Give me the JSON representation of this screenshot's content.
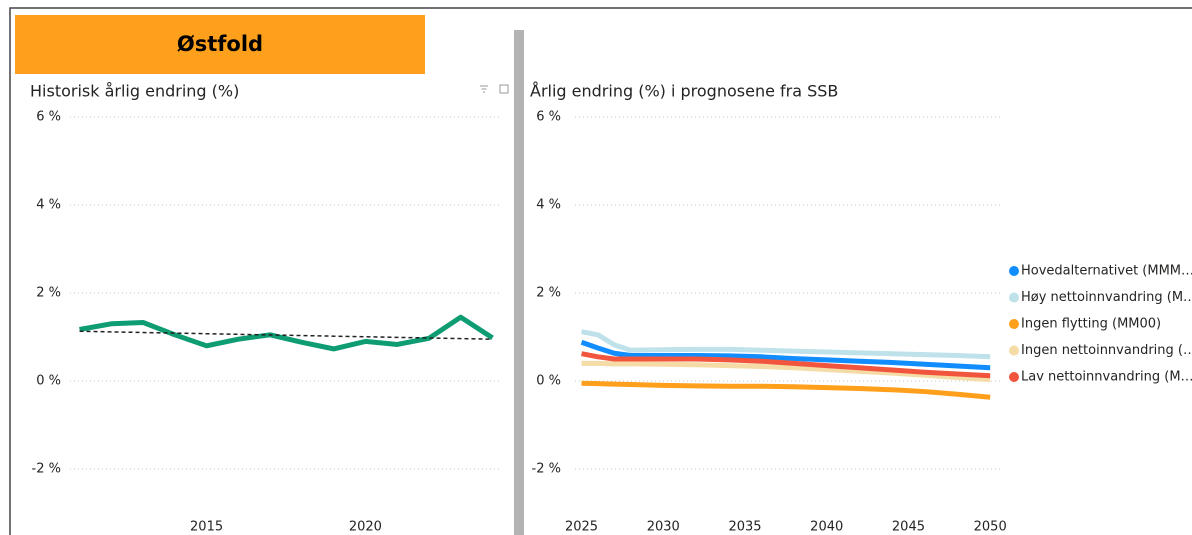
{
  "banner": "Østfold",
  "chart_data": [
    {
      "type": "line",
      "title": "Historisk årlig endring (%)",
      "x": [
        2011,
        2012,
        2013,
        2014,
        2015,
        2016,
        2017,
        2018,
        2019,
        2020,
        2021,
        2022,
        2023,
        2024
      ],
      "series": [
        {
          "color": "#0e9c73",
          "values": [
            1.17,
            1.3,
            1.33,
            1.05,
            0.8,
            0.95,
            1.05,
            0.88,
            0.73,
            0.9,
            0.83,
            0.97,
            1.45,
            0.98
          ]
        }
      ],
      "trend": [
        1.13,
        0.95
      ],
      "xlim": [
        2010.7,
        2024.3
      ],
      "xticks": [
        2015,
        2020
      ],
      "ylim": [
        -3,
        6
      ],
      "yticks": [
        {
          "value": -2,
          "label": "-2 %"
        },
        {
          "value": 0,
          "label": "0 %"
        },
        {
          "value": 2,
          "label": "2 %"
        },
        {
          "value": 4,
          "label": "4 %"
        },
        {
          "value": 6,
          "label": "6 %"
        }
      ],
      "grid": true
    },
    {
      "type": "line",
      "title": "Årlig endring (%) i prognosene fra SSB",
      "x": [
        2025,
        2026,
        2027,
        2028,
        2030,
        2032,
        2034,
        2036,
        2038,
        2040,
        2042,
        2044,
        2046,
        2048,
        2050
      ],
      "series": [
        {
          "name": "Hovedalternativet (MMM…",
          "color": "#118dff",
          "values": [
            0.88,
            0.75,
            0.63,
            0.58,
            0.58,
            0.58,
            0.57,
            0.55,
            0.51,
            0.48,
            0.45,
            0.42,
            0.38,
            0.34,
            0.3
          ]
        },
        {
          "name": "Høy nettoinnvandring (M…",
          "color": "#bfe1ea",
          "values": [
            1.12,
            1.05,
            0.82,
            0.7,
            0.71,
            0.72,
            0.72,
            0.7,
            0.68,
            0.66,
            0.64,
            0.62,
            0.6,
            0.58,
            0.55
          ]
        },
        {
          "name": "Ingen flytting (MM00)",
          "color": "#ff9f1c",
          "values": [
            -0.05,
            -0.06,
            -0.07,
            -0.08,
            -0.1,
            -0.11,
            -0.12,
            -0.12,
            -0.13,
            -0.15,
            -0.17,
            -0.2,
            -0.24,
            -0.3,
            -0.37
          ]
        },
        {
          "name": "Ingen nettoinnvandring (…",
          "color": "#f5dca6",
          "values": [
            0.4,
            0.4,
            0.39,
            0.39,
            0.38,
            0.37,
            0.35,
            0.33,
            0.3,
            0.26,
            0.22,
            0.18,
            0.13,
            0.08,
            0.03
          ]
        },
        {
          "name": "Lav nettoinnvandring (M…",
          "color": "#f2553d",
          "values": [
            0.62,
            0.55,
            0.5,
            0.5,
            0.5,
            0.5,
            0.48,
            0.45,
            0.4,
            0.35,
            0.3,
            0.25,
            0.2,
            0.16,
            0.12
          ]
        }
      ],
      "xlim": [
        2024.6,
        2050.6
      ],
      "xticks": [
        2025,
        2030,
        2035,
        2040,
        2045,
        2050
      ],
      "ylim": [
        -3,
        6
      ],
      "yticks": [
        {
          "value": -2,
          "label": "-2 %"
        },
        {
          "value": 0,
          "label": "0 %"
        },
        {
          "value": 2,
          "label": "2 %"
        },
        {
          "value": 4,
          "label": "4 %"
        },
        {
          "value": 6,
          "label": "6 %"
        }
      ],
      "grid": true,
      "legend": "right"
    }
  ]
}
